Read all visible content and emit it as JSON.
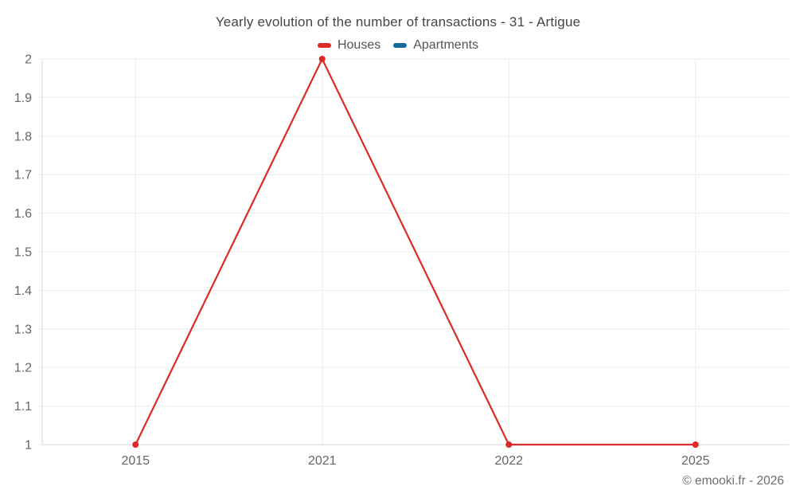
{
  "title": "Yearly evolution of the number of transactions - 31 - Artigue",
  "footer": "© emooki.fr - 2026",
  "legend": [
    {
      "label": "Houses",
      "color": "#dc2a27"
    },
    {
      "label": "Apartments",
      "color": "#17699f"
    }
  ],
  "chart_data": {
    "type": "line",
    "title": "Yearly evolution of the number of transactions - 31 - Artigue",
    "categories": [
      "2015",
      "2021",
      "2022",
      "2025"
    ],
    "series": [
      {
        "name": "Houses",
        "color": "#dc2a27",
        "values": [
          1,
          2,
          1,
          1
        ]
      },
      {
        "name": "Apartments",
        "color": "#17699f",
        "values": []
      }
    ],
    "xlabel": "",
    "ylabel": "",
    "ylim": [
      1,
      2
    ],
    "ytick_step": 0.1,
    "yticks": [
      "1",
      "1.1",
      "1.2",
      "1.3",
      "1.4",
      "1.5",
      "1.6",
      "1.7",
      "1.8",
      "1.9",
      "2"
    ],
    "grid": true,
    "legend_position": "top",
    "marker": "circle"
  }
}
